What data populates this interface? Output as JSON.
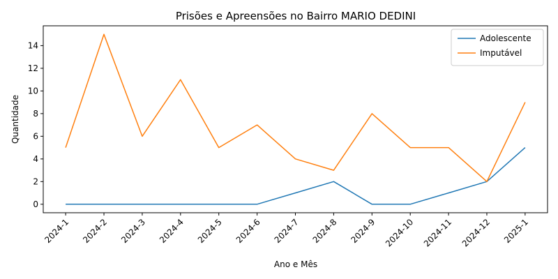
{
  "chart_data": {
    "type": "line",
    "title": "Prisões e Apreensões no Bairro MARIO DEDINI",
    "xlabel": "Ano e Mês",
    "ylabel": "Quantidade",
    "categories": [
      "2024-1",
      "2024-2",
      "2024-3",
      "2024-4",
      "2024-5",
      "2024-6",
      "2024-7",
      "2024-8",
      "2024-9",
      "2024-10",
      "2024-11",
      "2024-12",
      "2025-1"
    ],
    "ylim": [
      -0.75,
      15.75
    ],
    "yticks": [
      0,
      2,
      4,
      6,
      8,
      10,
      12,
      14
    ],
    "grid": false,
    "legend_position": "top-right",
    "series": [
      {
        "name": "Adolescente",
        "color": "#1f77b4",
        "values": [
          0,
          0,
          0,
          0,
          0,
          0,
          1,
          2,
          0,
          0,
          1,
          2,
          5
        ]
      },
      {
        "name": "Imputável",
        "color": "#ff7f0e",
        "values": [
          5,
          15,
          6,
          11,
          5,
          7,
          4,
          3,
          8,
          5,
          5,
          2,
          9
        ]
      }
    ]
  }
}
